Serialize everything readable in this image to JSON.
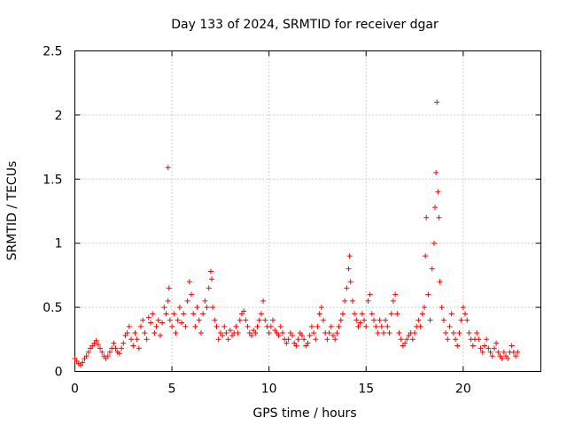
{
  "chart_data": {
    "type": "scatter",
    "title": "Day 133 of 2024, SRMTID for receiver dgar",
    "xlabel": "GPS time / hours",
    "ylabel": "SRMTID / TECUs",
    "xlim": [
      0,
      24
    ],
    "ylim": [
      0,
      2.5
    ],
    "xticks": [
      0,
      5,
      10,
      15,
      20
    ],
    "xtick_labels": [
      "0",
      "5",
      "10",
      "15",
      "20"
    ],
    "yticks": [
      0,
      0.5,
      1,
      1.5,
      2,
      2.5
    ],
    "ytick_labels": [
      "0",
      "0.5",
      "1",
      "1.5",
      "2",
      "2.5"
    ],
    "grid": true,
    "marker": "+",
    "color": "#ff0000",
    "series": [
      {
        "name": "SRMTID",
        "points": [
          [
            0.0,
            0.1
          ],
          [
            0.1,
            0.08
          ],
          [
            0.2,
            0.06
          ],
          [
            0.3,
            0.05
          ],
          [
            0.4,
            0.07
          ],
          [
            0.5,
            0.1
          ],
          [
            0.6,
            0.12
          ],
          [
            0.7,
            0.15
          ],
          [
            0.8,
            0.18
          ],
          [
            0.9,
            0.2
          ],
          [
            1.0,
            0.22
          ],
          [
            1.1,
            0.24
          ],
          [
            1.2,
            0.21
          ],
          [
            1.3,
            0.18
          ],
          [
            1.4,
            0.15
          ],
          [
            1.5,
            0.12
          ],
          [
            1.6,
            0.1
          ],
          [
            1.7,
            0.12
          ],
          [
            1.8,
            0.15
          ],
          [
            1.9,
            0.18
          ],
          [
            2.0,
            0.22
          ],
          [
            2.1,
            0.18
          ],
          [
            2.2,
            0.15
          ],
          [
            2.3,
            0.14
          ],
          [
            2.4,
            0.18
          ],
          [
            2.5,
            0.22
          ],
          [
            2.6,
            0.28
          ],
          [
            2.7,
            0.3
          ],
          [
            2.8,
            0.35
          ],
          [
            2.9,
            0.25
          ],
          [
            3.0,
            0.2
          ],
          [
            3.1,
            0.3
          ],
          [
            3.2,
            0.25
          ],
          [
            3.3,
            0.18
          ],
          [
            3.4,
            0.35
          ],
          [
            3.5,
            0.4
          ],
          [
            3.6,
            0.3
          ],
          [
            3.7,
            0.25
          ],
          [
            3.8,
            0.42
          ],
          [
            3.9,
            0.38
          ],
          [
            4.0,
            0.45
          ],
          [
            4.1,
            0.3
          ],
          [
            4.2,
            0.35
          ],
          [
            4.3,
            0.4
          ],
          [
            4.4,
            0.28
          ],
          [
            4.5,
            0.38
          ],
          [
            4.6,
            0.5
          ],
          [
            4.7,
            0.45
          ],
          [
            4.8,
            0.55
          ],
          [
            4.85,
            0.65
          ],
          [
            4.8,
            1.59
          ],
          [
            4.9,
            0.4
          ],
          [
            5.0,
            0.35
          ],
          [
            5.1,
            0.45
          ],
          [
            5.2,
            0.3
          ],
          [
            5.3,
            0.4
          ],
          [
            5.4,
            0.5
          ],
          [
            5.5,
            0.38
          ],
          [
            5.6,
            0.45
          ],
          [
            5.7,
            0.35
          ],
          [
            5.8,
            0.55
          ],
          [
            5.9,
            0.7
          ],
          [
            6.0,
            0.6
          ],
          [
            6.1,
            0.45
          ],
          [
            6.2,
            0.35
          ],
          [
            6.3,
            0.5
          ],
          [
            6.4,
            0.4
          ],
          [
            6.5,
            0.3
          ],
          [
            6.6,
            0.45
          ],
          [
            6.7,
            0.55
          ],
          [
            6.8,
            0.5
          ],
          [
            6.9,
            0.65
          ],
          [
            7.0,
            0.78
          ],
          [
            7.05,
            0.72
          ],
          [
            7.1,
            0.5
          ],
          [
            7.2,
            0.4
          ],
          [
            7.3,
            0.35
          ],
          [
            7.4,
            0.25
          ],
          [
            7.5,
            0.3
          ],
          [
            7.6,
            0.28
          ],
          [
            7.7,
            0.35
          ],
          [
            7.8,
            0.3
          ],
          [
            7.9,
            0.25
          ],
          [
            8.0,
            0.32
          ],
          [
            8.1,
            0.28
          ],
          [
            8.2,
            0.3
          ],
          [
            8.3,
            0.35
          ],
          [
            8.4,
            0.3
          ],
          [
            8.5,
            0.4
          ],
          [
            8.6,
            0.45
          ],
          [
            8.7,
            0.47
          ],
          [
            8.8,
            0.4
          ],
          [
            8.9,
            0.35
          ],
          [
            9.0,
            0.3
          ],
          [
            9.1,
            0.28
          ],
          [
            9.2,
            0.32
          ],
          [
            9.3,
            0.3
          ],
          [
            9.4,
            0.35
          ],
          [
            9.5,
            0.4
          ],
          [
            9.6,
            0.45
          ],
          [
            9.7,
            0.55
          ],
          [
            9.8,
            0.4
          ],
          [
            9.9,
            0.35
          ],
          [
            10.0,
            0.3
          ],
          [
            10.1,
            0.35
          ],
          [
            10.2,
            0.4
          ],
          [
            10.3,
            0.32
          ],
          [
            10.4,
            0.3
          ],
          [
            10.5,
            0.28
          ],
          [
            10.6,
            0.35
          ],
          [
            10.7,
            0.3
          ],
          [
            10.8,
            0.25
          ],
          [
            10.9,
            0.22
          ],
          [
            11.0,
            0.25
          ],
          [
            11.1,
            0.3
          ],
          [
            11.2,
            0.28
          ],
          [
            11.3,
            0.22
          ],
          [
            11.4,
            0.2
          ],
          [
            11.5,
            0.25
          ],
          [
            11.6,
            0.3
          ],
          [
            11.7,
            0.28
          ],
          [
            11.8,
            0.25
          ],
          [
            11.9,
            0.2
          ],
          [
            12.0,
            0.22
          ],
          [
            12.1,
            0.28
          ],
          [
            12.2,
            0.35
          ],
          [
            12.3,
            0.3
          ],
          [
            12.4,
            0.25
          ],
          [
            12.5,
            0.35
          ],
          [
            12.6,
            0.45
          ],
          [
            12.7,
            0.5
          ],
          [
            12.8,
            0.4
          ],
          [
            12.9,
            0.3
          ],
          [
            13.0,
            0.25
          ],
          [
            13.1,
            0.3
          ],
          [
            13.2,
            0.35
          ],
          [
            13.3,
            0.28
          ],
          [
            13.4,
            0.25
          ],
          [
            13.5,
            0.3
          ],
          [
            13.6,
            0.35
          ],
          [
            13.7,
            0.4
          ],
          [
            13.8,
            0.45
          ],
          [
            13.9,
            0.55
          ],
          [
            14.0,
            0.65
          ],
          [
            14.1,
            0.8
          ],
          [
            14.15,
            0.9
          ],
          [
            14.2,
            0.7
          ],
          [
            14.3,
            0.55
          ],
          [
            14.4,
            0.45
          ],
          [
            14.5,
            0.4
          ],
          [
            14.6,
            0.35
          ],
          [
            14.7,
            0.38
          ],
          [
            14.8,
            0.45
          ],
          [
            14.9,
            0.4
          ],
          [
            15.0,
            0.35
          ],
          [
            15.1,
            0.55
          ],
          [
            15.2,
            0.6
          ],
          [
            15.3,
            0.45
          ],
          [
            15.4,
            0.4
          ],
          [
            15.5,
            0.35
          ],
          [
            15.6,
            0.3
          ],
          [
            15.7,
            0.4
          ],
          [
            15.8,
            0.35
          ],
          [
            15.9,
            0.3
          ],
          [
            16.0,
            0.4
          ],
          [
            16.1,
            0.35
          ],
          [
            16.2,
            0.3
          ],
          [
            16.3,
            0.45
          ],
          [
            16.4,
            0.55
          ],
          [
            16.5,
            0.6
          ],
          [
            16.6,
            0.45
          ],
          [
            16.7,
            0.3
          ],
          [
            16.8,
            0.25
          ],
          [
            16.9,
            0.2
          ],
          [
            17.0,
            0.22
          ],
          [
            17.1,
            0.25
          ],
          [
            17.2,
            0.28
          ],
          [
            17.3,
            0.3
          ],
          [
            17.4,
            0.25
          ],
          [
            17.5,
            0.3
          ],
          [
            17.6,
            0.35
          ],
          [
            17.7,
            0.4
          ],
          [
            17.8,
            0.35
          ],
          [
            17.9,
            0.45
          ],
          [
            18.0,
            0.5
          ],
          [
            18.05,
            0.9
          ],
          [
            18.1,
            1.2
          ],
          [
            18.2,
            0.6
          ],
          [
            18.3,
            0.4
          ],
          [
            18.4,
            0.8
          ],
          [
            18.5,
            1.0
          ],
          [
            18.55,
            1.28
          ],
          [
            18.6,
            1.55
          ],
          [
            18.65,
            2.1
          ],
          [
            18.7,
            1.4
          ],
          [
            18.75,
            1.2
          ],
          [
            18.8,
            0.7
          ],
          [
            18.9,
            0.5
          ],
          [
            19.0,
            0.4
          ],
          [
            19.1,
            0.3
          ],
          [
            19.2,
            0.25
          ],
          [
            19.3,
            0.35
          ],
          [
            19.4,
            0.45
          ],
          [
            19.5,
            0.3
          ],
          [
            19.6,
            0.25
          ],
          [
            19.7,
            0.2
          ],
          [
            19.8,
            0.3
          ],
          [
            19.9,
            0.4
          ],
          [
            20.0,
            0.5
          ],
          [
            20.1,
            0.45
          ],
          [
            20.2,
            0.4
          ],
          [
            20.3,
            0.3
          ],
          [
            20.4,
            0.25
          ],
          [
            20.5,
            0.2
          ],
          [
            20.6,
            0.25
          ],
          [
            20.7,
            0.3
          ],
          [
            20.8,
            0.25
          ],
          [
            20.9,
            0.18
          ],
          [
            21.0,
            0.15
          ],
          [
            21.1,
            0.2
          ],
          [
            21.2,
            0.25
          ],
          [
            21.3,
            0.18
          ],
          [
            21.4,
            0.15
          ],
          [
            21.5,
            0.12
          ],
          [
            21.6,
            0.18
          ],
          [
            21.7,
            0.22
          ],
          [
            21.8,
            0.15
          ],
          [
            21.9,
            0.12
          ],
          [
            22.0,
            0.1
          ],
          [
            22.1,
            0.15
          ],
          [
            22.2,
            0.12
          ],
          [
            22.3,
            0.1
          ],
          [
            22.4,
            0.15
          ],
          [
            22.5,
            0.2
          ],
          [
            22.6,
            0.15
          ],
          [
            22.7,
            0.12
          ],
          [
            22.8,
            0.15
          ]
        ]
      }
    ]
  }
}
